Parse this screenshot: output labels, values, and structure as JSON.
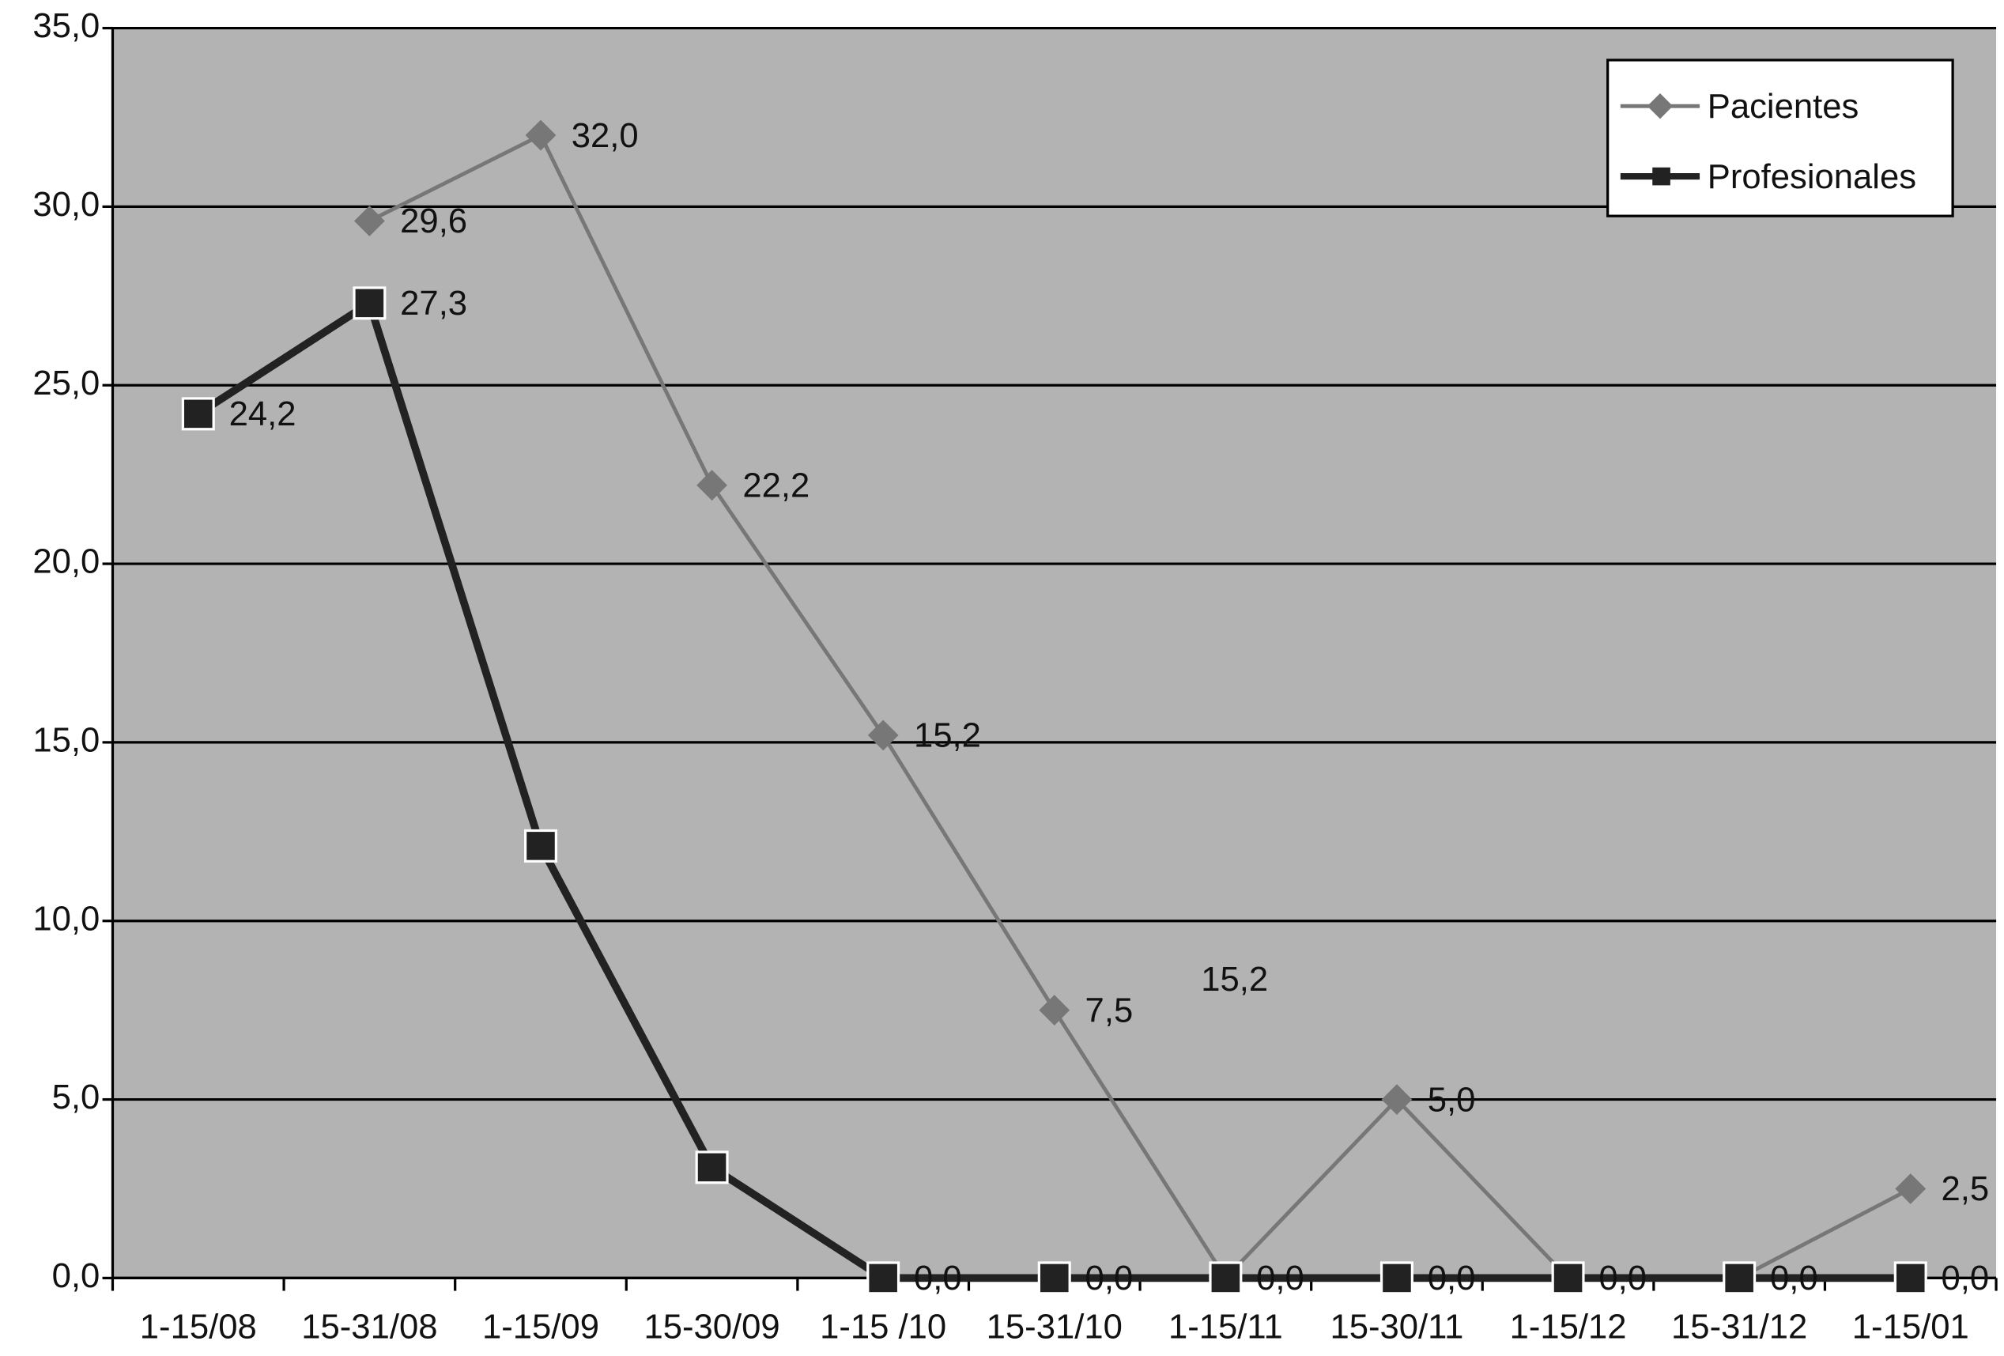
{
  "chart_data": {
    "type": "line",
    "categories": [
      "1-15/08",
      "15-31/08",
      "1-15/09",
      "15-30/09",
      "1-15 /10",
      "15-31/10",
      "1-15/11",
      "15-30/11",
      "1-15/12",
      "15-31/12",
      "1-15/01"
    ],
    "series": [
      {
        "name": "Pacientes",
        "color": "#777777",
        "marker": "diamond",
        "values": [
          null,
          29.6,
          32.0,
          22.2,
          15.2,
          7.5,
          0,
          5.0,
          0,
          0,
          2.5
        ],
        "value_labels": [
          null,
          "29,6",
          "32,0",
          "22,2",
          "15,2",
          "7,5",
          null,
          "5,0",
          null,
          null,
          "2,5"
        ]
      },
      {
        "name": "Profesionales",
        "color": "#222222",
        "marker": "square",
        "values": [
          24.2,
          27.3,
          12.1,
          3.1,
          0,
          0,
          0,
          0,
          0,
          0,
          0
        ],
        "value_labels": [
          "24,2",
          "27,3",
          null,
          null,
          "0,0",
          "0,0",
          "0,0",
          "0,0",
          "0,0",
          "0,0",
          "0,0"
        ]
      }
    ],
    "annotations": [
      "15,2"
    ],
    "ylim": [
      0,
      35
    ],
    "yticks": [
      {
        "value": 0,
        "label": "0,0"
      },
      {
        "value": 5,
        "label": "5,0"
      },
      {
        "value": 10,
        "label": "10,0"
      },
      {
        "value": 15,
        "label": "15,0"
      },
      {
        "value": 20,
        "label": "20,0"
      },
      {
        "value": 25,
        "label": "25,0"
      },
      {
        "value": 30,
        "label": "30,0"
      },
      {
        "value": 35,
        "label": "35,0"
      }
    ],
    "grid": true,
    "legend": "top-right",
    "background": "#b3b3b3"
  }
}
